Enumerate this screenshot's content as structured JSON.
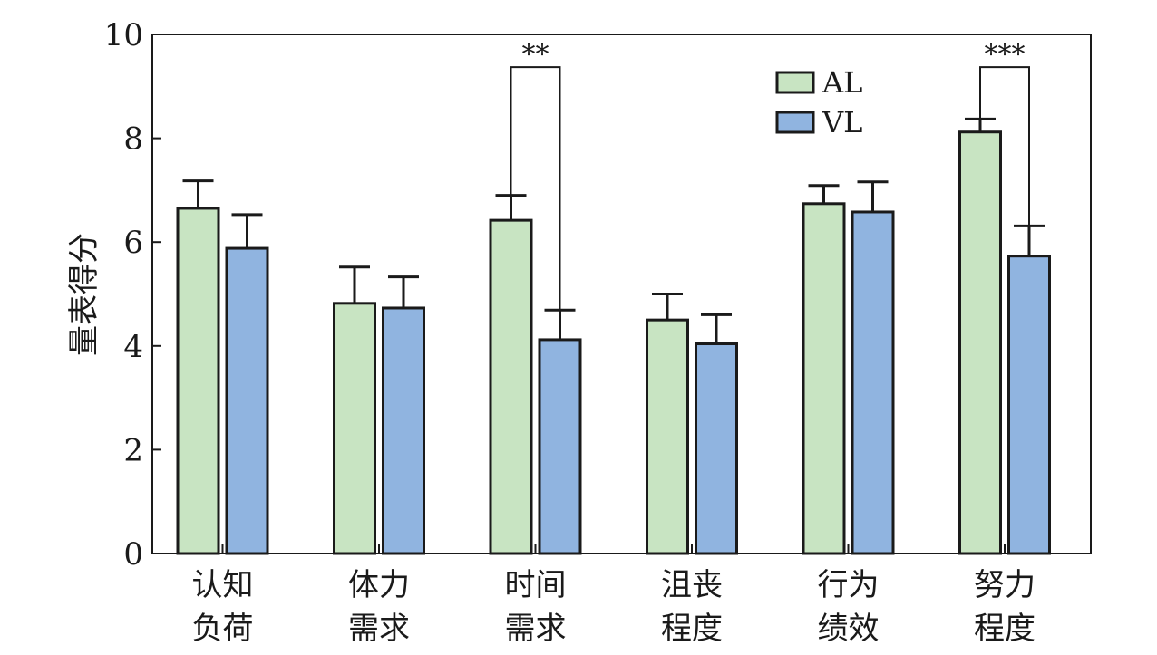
{
  "chart_data": {
    "type": "bar",
    "title": "",
    "xlabel": "",
    "ylabel": "量表得分",
    "ylim": [
      0,
      10
    ],
    "yticks": [
      0,
      2,
      4,
      6,
      8,
      10
    ],
    "grid": false,
    "legend_position": "top-right",
    "categories": [
      [
        "认知",
        "负荷"
      ],
      [
        "体力",
        "需求"
      ],
      [
        "时间",
        "需求"
      ],
      [
        "沮丧",
        "程度"
      ],
      [
        "行为",
        "绩效"
      ],
      [
        "努力",
        "程度"
      ]
    ],
    "series": [
      {
        "name": "AL",
        "color": "#c8e4c2",
        "values": [
          6.65,
          4.82,
          6.42,
          4.5,
          6.74,
          8.12
        ],
        "errors": [
          0.53,
          0.7,
          0.48,
          0.5,
          0.35,
          0.25
        ]
      },
      {
        "name": "VL",
        "color": "#90b4e0",
        "values": [
          5.88,
          4.73,
          4.12,
          4.04,
          6.58,
          5.73
        ],
        "errors": [
          0.65,
          0.6,
          0.57,
          0.56,
          0.58,
          0.58
        ]
      }
    ],
    "significance": [
      {
        "category_index": 2,
        "label": "**",
        "bracket_top": 9.37
      },
      {
        "category_index": 5,
        "label": "***",
        "bracket_top": 9.37
      }
    ]
  }
}
